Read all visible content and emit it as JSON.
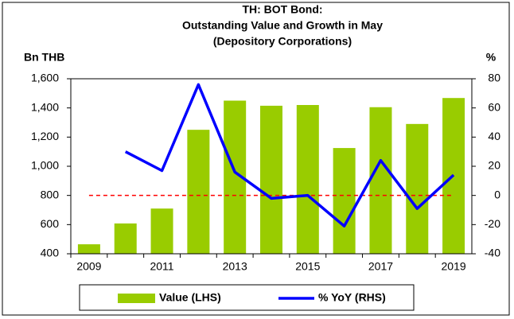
{
  "chart_data": {
    "type": "bar_line",
    "title": [
      "TH: BOT Bond:",
      "Outstanding Value and Growth in May",
      "(Depository Corporations)"
    ],
    "y_label": "Bn THB",
    "y2_label": "%",
    "categories": [
      "2009",
      null,
      "2011",
      null,
      "2013",
      null,
      "2015",
      null,
      "2017",
      null,
      "2019"
    ],
    "series": [
      {
        "name": "Value (LHS)",
        "color": "#99cc00",
        "type": "bar",
        "values": [
          465,
          608,
          710,
          1250,
          1450,
          1415,
          1420,
          1125,
          1405,
          1290,
          1468
        ]
      },
      {
        "name": "% YoY (RHS)",
        "color": "#0000ff",
        "type": "line",
        "axis": "y2",
        "values": [
          null,
          30,
          17,
          76,
          16,
          -2,
          0,
          -21,
          24,
          -9,
          14
        ]
      }
    ],
    "ylim": [
      400,
      1600
    ],
    "yticks": [
      400,
      600,
      800,
      {
        "value": 1000,
        "label": "1,000"
      },
      {
        "value": 1200,
        "label": "1,200"
      },
      {
        "value": 1400,
        "label": "1,400"
      },
      {
        "value": 1600,
        "label": "1,600"
      }
    ],
    "y2lim": [
      -40,
      80
    ],
    "y2ticks": [
      -40,
      -20,
      0,
      20,
      40,
      60,
      80
    ],
    "reference_line": {
      "value": 0,
      "axis": "y2",
      "color": "#ff0000"
    },
    "legend": "bottom"
  }
}
